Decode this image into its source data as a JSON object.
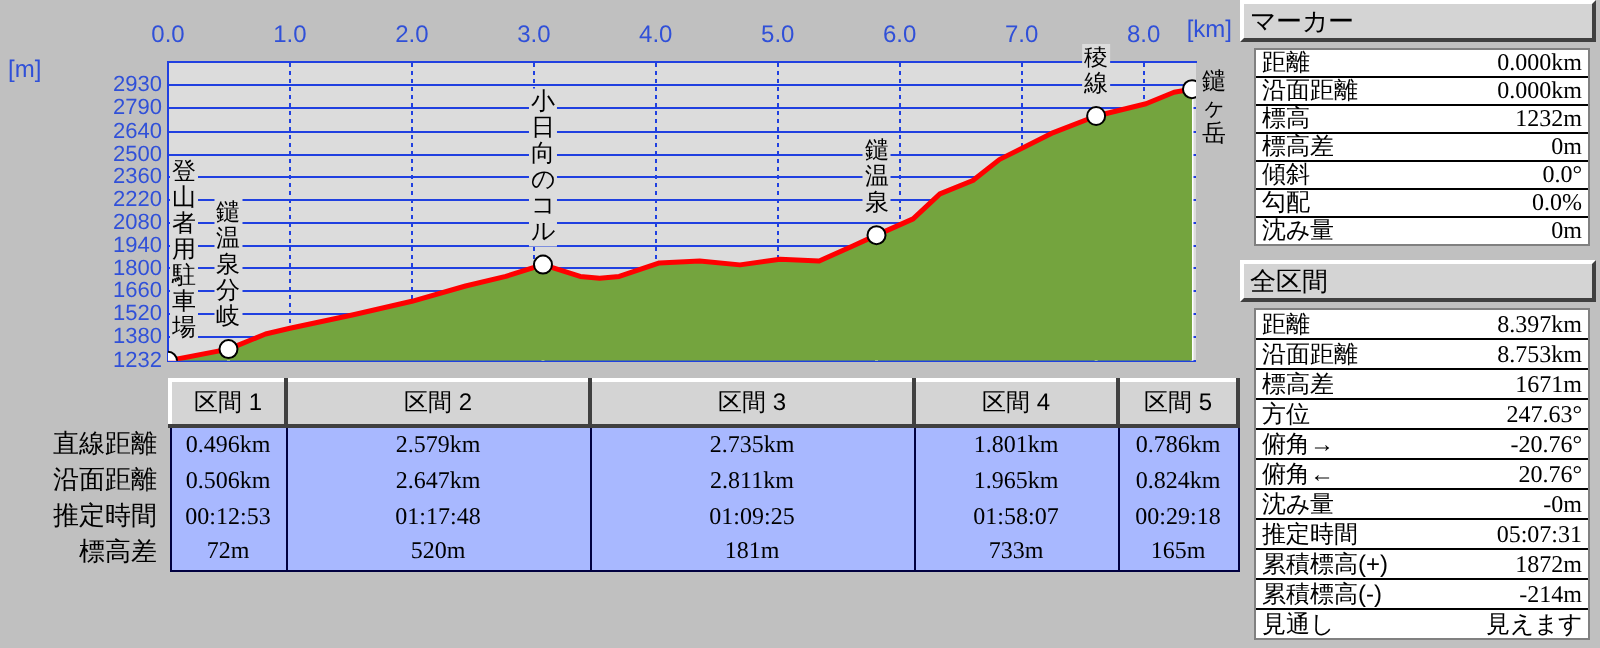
{
  "chart_data": [
    {
      "type": "area",
      "xlabel": "[km]",
      "ylabel": "[m]",
      "xlim": [
        0,
        8.43
      ],
      "xticks": [
        {
          "value": 0,
          "label": "0.0"
        },
        {
          "value": 1,
          "label": "1.0"
        },
        {
          "value": 2,
          "label": "2.0"
        },
        {
          "value": 3,
          "label": "3.0"
        },
        {
          "value": 4,
          "label": "4.0"
        },
        {
          "value": 5,
          "label": "5.0"
        },
        {
          "value": 6,
          "label": "6.0"
        },
        {
          "value": 7,
          "label": "7.0"
        },
        {
          "value": 8,
          "label": "8.0"
        }
      ],
      "ylim": [
        1232,
        3070
      ],
      "yticks": [
        1232,
        1380,
        1520,
        1660,
        1800,
        1940,
        2080,
        2220,
        2360,
        2500,
        2640,
        2790,
        2930
      ],
      "grid": true,
      "legend": false,
      "series": [
        {
          "type": "area",
          "color": "#74a43e",
          "x": [
            0,
            0.496,
            0.8,
            1.0,
            1.52,
            2.0,
            2.44,
            2.77,
            3.075,
            3.38,
            3.54,
            3.7,
            4.03,
            4.36,
            4.69,
            5.02,
            5.34,
            5.62,
            5.81,
            6.11,
            6.33,
            6.6,
            6.82,
            7.26,
            7.611,
            8.02,
            8.25,
            8.397
          ],
          "values": [
            1232,
            1304,
            1397,
            1432,
            1515,
            1598,
            1692,
            1751,
            1824,
            1751,
            1740,
            1751,
            1834,
            1846,
            1822,
            1857,
            1846,
            1940,
            2005,
            2105,
            2259,
            2341,
            2471,
            2636,
            2738,
            2813,
            2884,
            2903
          ]
        },
        {
          "type": "scatter",
          "color": "#ffffff",
          "marker": "circle",
          "x": [
            0,
            0.496,
            3.075,
            5.81,
            7.611,
            8.397
          ],
          "values": [
            1232,
            1304,
            1824,
            2005,
            2738,
            2903
          ]
        }
      ],
      "annotations": [
        {
          "text": "登山者用駐車場",
          "x": 0,
          "y": 1232
        },
        {
          "text": "鑓温泉分岐",
          "x": 0.496,
          "y": 1304
        },
        {
          "text": "小日向のコル",
          "x": 3.075,
          "y": 1824
        },
        {
          "text": "鑓温泉",
          "x": 5.81,
          "y": 2005
        },
        {
          "text": "稜線",
          "x": 7.611,
          "y": 2738
        },
        {
          "text": "鑓ヶ岳",
          "x": 8.397,
          "y": 2903
        }
      ]
    },
    {
      "type": "other",
      "categories": [
        "区間 1",
        "区間 2",
        "区間 3",
        "区間 4",
        "区間 5"
      ],
      "y_categories": [
        "直線距離",
        "沿面距離",
        "推定時間",
        "標高差"
      ],
      "cell_labels": [
        [
          "0.496km",
          "2.579km",
          "2.735km",
          "1.801km",
          "0.786km"
        ],
        [
          "0.506km",
          "2.647km",
          "2.811km",
          "1.965km",
          "0.824km"
        ],
        [
          "00:12:53",
          "01:17:48",
          "01:09:25",
          "01:58:07",
          "00:29:18"
        ],
        [
          "72m",
          "520m",
          "181m",
          "733m",
          "165m"
        ]
      ]
    },
    {
      "type": "other",
      "title": "マーカー",
      "y_categories": [
        "距離",
        "沿面距離",
        "標高",
        "標高差",
        "傾斜",
        "勾配",
        "沈み量"
      ],
      "cell_labels": [
        [
          "0.000km"
        ],
        [
          "0.000km"
        ],
        [
          "1232m"
        ],
        [
          "0m"
        ],
        [
          "0.0°"
        ],
        [
          "0.0%"
        ],
        [
          "0m"
        ]
      ]
    },
    {
      "type": "other",
      "title": "全区間",
      "y_categories": [
        "距離",
        "沿面距離",
        "標高差",
        "方位",
        "俯角→",
        "俯角←",
        "沈み量",
        "推定時間",
        "累積標高(+)",
        "累積標高(-)",
        "見通し"
      ],
      "cell_labels": [
        [
          "8.397km"
        ],
        [
          "8.753km"
        ],
        [
          "1671m"
        ],
        [
          "247.63°"
        ],
        [
          "-20.76°"
        ],
        [
          "20.76°"
        ],
        [
          "-0m"
        ],
        [
          "05:07:31"
        ],
        [
          "1872m"
        ],
        [
          "-214m"
        ],
        [
          "見えます"
        ]
      ]
    }
  ]
}
